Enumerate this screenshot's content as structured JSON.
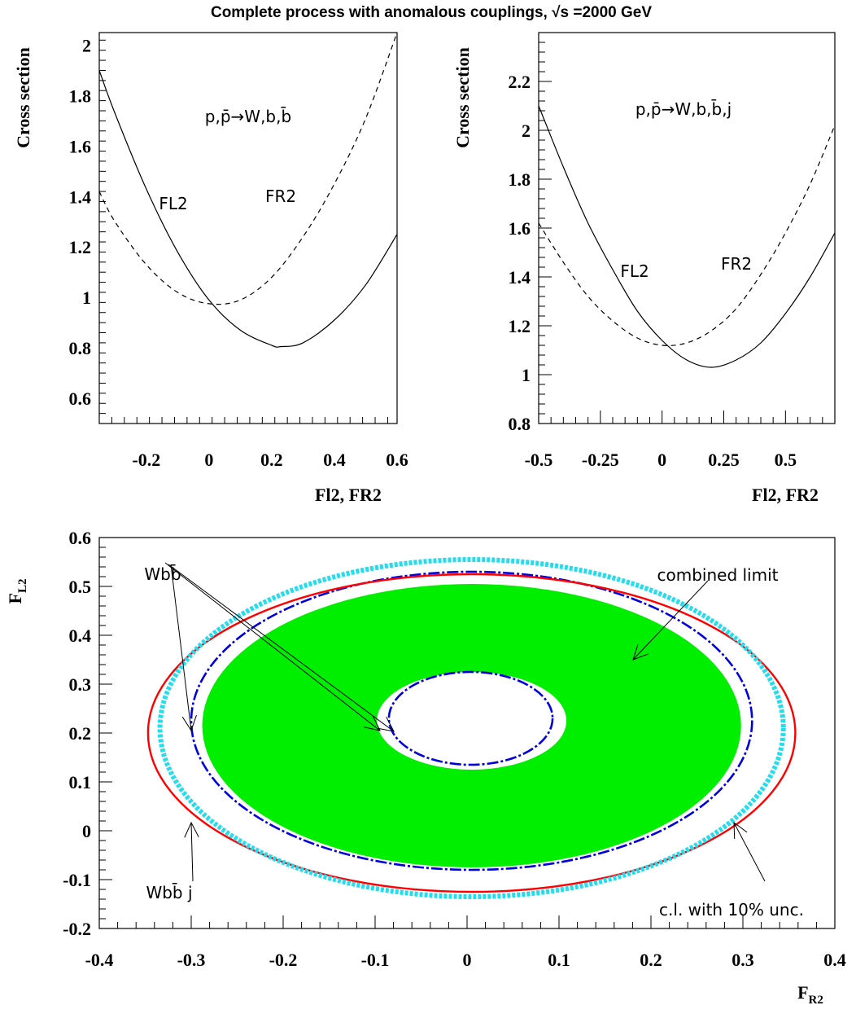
{
  "title": "Complete process with anomalous couplings, √s =2000 GeV",
  "chart_data": [
    {
      "type": "line",
      "panel": "top-left",
      "process_label": "p,p̄→W,b,b̄",
      "xlabel": "Fl2, FR2",
      "ylabel": "Cross section",
      "xlim": [
        -0.35,
        0.6
      ],
      "ylim": [
        0.5,
        2.05
      ],
      "xticks": [
        "-0.2",
        "0",
        "0.2",
        "0.4",
        "0.6"
      ],
      "xtick_values": [
        -0.2,
        0,
        0.2,
        0.4,
        0.6
      ],
      "yticks": [
        "0.6",
        "0.8",
        "1",
        "1.2",
        "1.4",
        "1.6",
        "1.8",
        "2"
      ],
      "ytick_values": [
        0.6,
        0.8,
        1,
        1.2,
        1.4,
        1.6,
        1.8,
        2
      ],
      "series": [
        {
          "name": "FL2",
          "style": "solid",
          "x": [
            -0.35,
            -0.3,
            -0.2,
            -0.1,
            0,
            0.1,
            0.2,
            0.23,
            0.3,
            0.4,
            0.5,
            0.6
          ],
          "y": [
            1.9,
            1.73,
            1.43,
            1.18,
            0.99,
            0.87,
            0.81,
            0.805,
            0.82,
            0.91,
            1.05,
            1.25
          ]
        },
        {
          "name": "FR2",
          "style": "dashed",
          "x": [
            -0.35,
            -0.3,
            -0.2,
            -0.1,
            0,
            0.1,
            0.2,
            0.3,
            0.4,
            0.5,
            0.6
          ],
          "y": [
            1.42,
            1.3,
            1.13,
            1.02,
            0.975,
            0.99,
            1.08,
            1.24,
            1.45,
            1.71,
            2.05
          ]
        }
      ],
      "series_label_text": [
        "FL2",
        "FR2"
      ]
    },
    {
      "type": "line",
      "panel": "top-right",
      "process_label": "p,p̄→W,b,b̄,j",
      "xlabel": "Fl2, FR2",
      "ylabel": "Cross section",
      "xlim": [
        -0.5,
        0.7
      ],
      "ylim": [
        0.8,
        2.4
      ],
      "xticks": [
        "-0.5",
        "-0.25",
        "0",
        "0.25",
        "0.5"
      ],
      "xtick_values": [
        -0.5,
        -0.25,
        0,
        0.25,
        0.5
      ],
      "yticks": [
        "0.8",
        "1",
        "1.2",
        "1.4",
        "1.6",
        "1.8",
        "2",
        "2.2"
      ],
      "ytick_values": [
        0.8,
        1,
        1.2,
        1.4,
        1.6,
        1.8,
        2,
        2.2
      ],
      "series": [
        {
          "name": "FL2",
          "style": "solid",
          "x": [
            -0.5,
            -0.4,
            -0.3,
            -0.2,
            -0.1,
            0,
            0.1,
            0.2,
            0.3,
            0.4,
            0.5,
            0.6,
            0.7
          ],
          "y": [
            2.1,
            1.85,
            1.62,
            1.43,
            1.26,
            1.14,
            1.06,
            1.03,
            1.06,
            1.13,
            1.25,
            1.4,
            1.58
          ]
        },
        {
          "name": "FR2",
          "style": "dashed",
          "x": [
            -0.5,
            -0.4,
            -0.3,
            -0.2,
            -0.1,
            0,
            0.1,
            0.2,
            0.3,
            0.4,
            0.5,
            0.6,
            0.7
          ],
          "y": [
            1.62,
            1.46,
            1.32,
            1.22,
            1.15,
            1.12,
            1.13,
            1.18,
            1.27,
            1.41,
            1.58,
            1.78,
            2.02
          ]
        }
      ],
      "series_label_text": [
        "FL2",
        "FR2"
      ]
    },
    {
      "type": "contour",
      "panel": "bottom",
      "xlabel": "F_R2",
      "ylabel": "F_L2",
      "xlim": [
        -0.4,
        0.4
      ],
      "ylim": [
        -0.2,
        0.6
      ],
      "xticks": [
        "-0.4",
        "-0.3",
        "-0.2",
        "-0.1",
        "0",
        "0.1",
        "0.2",
        "0.3",
        "0.4"
      ],
      "xtick_values": [
        -0.4,
        -0.3,
        -0.2,
        -0.1,
        0,
        0.1,
        0.2,
        0.3,
        0.4
      ],
      "yticks": [
        "-0.2",
        "-0.1",
        "0",
        "0.1",
        "0.2",
        "0.3",
        "0.4",
        "0.5",
        "0.6"
      ],
      "ytick_values": [
        -0.2,
        -0.1,
        0,
        0.1,
        0.2,
        0.3,
        0.4,
        0.5,
        0.6
      ],
      "regions": [
        {
          "role": "combined limit",
          "color": "#00ee00",
          "outer": {
            "cx": 0.005,
            "cy": 0.215,
            "rx": 0.293,
            "ry": 0.29
          },
          "inner": {
            "cx": 0.005,
            "cy": 0.225,
            "rx": 0.103,
            "ry": 0.1
          }
        }
      ],
      "contours": [
        {
          "name": "Wbb̄",
          "color": "#0000dd",
          "style": "dashdot",
          "cx": 0.005,
          "cy": 0.225,
          "rx": 0.305,
          "ry": 0.305
        },
        {
          "name": "Wbb̄",
          "color": "#0000dd",
          "style": "dashdot",
          "cx": 0.004,
          "cy": 0.23,
          "rx": 0.089,
          "ry": 0.095
        },
        {
          "name": "Wbb̄j",
          "color": "#ff0000",
          "style": "solid",
          "cx": 0.005,
          "cy": 0.2,
          "rx": 0.352,
          "ry": 0.325
        },
        {
          "name": "c.l. with 10% unc.",
          "color": "#22ddee",
          "style": "dotted-thick",
          "cx": 0.005,
          "cy": 0.21,
          "rx": 0.339,
          "ry": 0.345
        }
      ],
      "annotations": [
        "Wbb̄",
        "Wbb̄ j",
        "combined limit",
        "c.l. with 10% unc."
      ]
    }
  ]
}
